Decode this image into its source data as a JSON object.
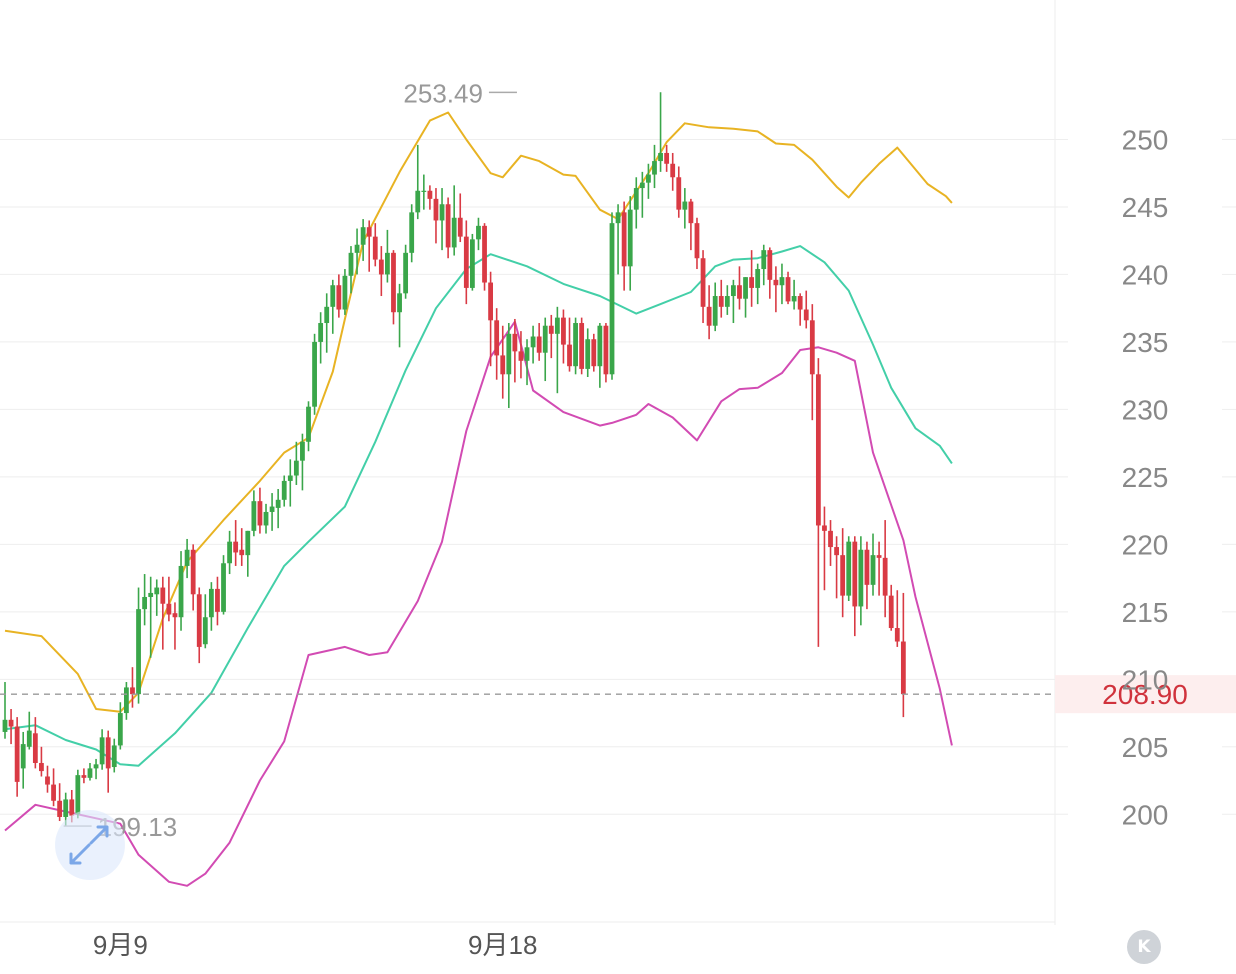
{
  "chart_data": {
    "type": "candlestick",
    "y_axis": {
      "ticks": [
        200,
        205,
        210,
        215,
        220,
        225,
        230,
        235,
        240,
        245,
        250
      ],
      "ylim": [
        193.5,
        257
      ]
    },
    "x_axis": {
      "tick_labels": [
        {
          "label": "9月9",
          "index": 19
        },
        {
          "label": "9月18",
          "index": 82
        }
      ]
    },
    "current_price": {
      "label": "208.90",
      "value": 208.9,
      "color": "#d0323c"
    },
    "annotations": [
      {
        "label": "253.49",
        "value": 253.49,
        "index": 85,
        "kind": "high"
      },
      {
        "label": "199.13",
        "value": 199.13,
        "index": 9,
        "kind": "low"
      }
    ],
    "colors": {
      "up": "#3aa64a",
      "down": "#d93a44",
      "upper_band": "#e8b323",
      "middle_band": "#43cfa8",
      "lower_band": "#d24bb3",
      "grid": "#eeeeee",
      "axis_text": "#888888"
    },
    "candles_ohlc": [
      [
        206.1,
        209.8,
        205.6,
        207.0
      ],
      [
        207.0,
        207.8,
        205.2,
        206.5
      ],
      [
        206.5,
        207.2,
        201.3,
        202.4
      ],
      [
        203.4,
        206.1,
        201.9,
        205.2
      ],
      [
        205.0,
        207.6,
        204.8,
        206.2
      ],
      [
        206.0,
        207.2,
        203.4,
        203.8
      ],
      [
        203.8,
        205.0,
        202.8,
        203.2
      ],
      [
        202.8,
        203.6,
        201.6,
        202.2
      ],
      [
        202.2,
        203.4,
        200.6,
        201.0
      ],
      [
        201.0,
        202.3,
        199.5,
        199.8
      ],
      [
        199.8,
        201.6,
        199.1,
        201.1
      ],
      [
        201.1,
        201.8,
        199.4,
        199.9
      ],
      [
        200.0,
        203.3,
        199.7,
        202.9
      ],
      [
        202.9,
        203.4,
        202.3,
        202.7
      ],
      [
        202.7,
        203.8,
        202.5,
        203.4
      ],
      [
        203.4,
        204.1,
        202.6,
        203.7
      ],
      [
        203.7,
        206.3,
        203.3,
        205.7
      ],
      [
        205.7,
        206.2,
        201.6,
        203.4
      ],
      [
        203.5,
        205.6,
        203.1,
        205.1
      ],
      [
        205.1,
        208.3,
        204.8,
        207.5
      ],
      [
        207.5,
        209.8,
        207.0,
        209.4
      ],
      [
        209.4,
        210.9,
        207.9,
        208.9
      ],
      [
        208.9,
        216.8,
        208.2,
        215.2
      ],
      [
        215.2,
        217.8,
        214.0,
        216.1
      ],
      [
        216.1,
        217.6,
        211.6,
        216.4
      ],
      [
        216.3,
        217.4,
        214.7,
        216.8
      ],
      [
        216.8,
        217.6,
        212.2,
        215.6
      ],
      [
        215.6,
        217.6,
        214.3,
        214.8
      ],
      [
        214.9,
        215.7,
        212.2,
        214.6
      ],
      [
        214.6,
        219.5,
        213.6,
        218.4
      ],
      [
        218.4,
        220.4,
        217.5,
        219.6
      ],
      [
        219.6,
        220.0,
        215.1,
        216.3
      ],
      [
        216.3,
        216.8,
        211.2,
        212.4
      ],
      [
        212.6,
        216.3,
        212.3,
        214.6
      ],
      [
        214.6,
        217.2,
        213.6,
        216.7
      ],
      [
        216.7,
        217.6,
        214.0,
        215.0
      ],
      [
        215.0,
        219.2,
        214.8,
        218.6
      ],
      [
        218.6,
        221.0,
        217.8,
        220.2
      ],
      [
        220.2,
        221.8,
        218.4,
        219.4
      ],
      [
        219.6,
        221.2,
        218.4,
        219.2
      ],
      [
        219.2,
        221.0,
        217.6,
        221.0
      ],
      [
        221.0,
        224.0,
        220.6,
        223.2
      ],
      [
        223.2,
        224.2,
        220.8,
        221.4
      ],
      [
        221.4,
        223.0,
        220.8,
        222.4
      ],
      [
        222.4,
        223.8,
        221.0,
        222.8
      ],
      [
        222.7,
        224.1,
        221.2,
        223.3
      ],
      [
        223.3,
        225.1,
        222.8,
        224.7
      ],
      [
        224.7,
        226.3,
        222.8,
        225.1
      ],
      [
        225.1,
        227.6,
        224.4,
        226.2
      ],
      [
        226.2,
        228.2,
        224.0,
        227.6
      ],
      [
        227.6,
        230.6,
        226.9,
        230.2
      ],
      [
        230.2,
        235.6,
        229.6,
        235.0
      ],
      [
        235.0,
        237.2,
        233.4,
        236.4
      ],
      [
        236.4,
        238.6,
        234.2,
        237.6
      ],
      [
        237.6,
        239.6,
        235.6,
        239.2
      ],
      [
        239.2,
        240.0,
        236.8,
        237.4
      ],
      [
        237.4,
        240.4,
        237.0,
        239.9
      ],
      [
        239.9,
        242.1,
        238.6,
        241.6
      ],
      [
        241.6,
        243.4,
        240.0,
        242.2
      ],
      [
        242.2,
        244.1,
        241.0,
        243.5
      ],
      [
        243.5,
        244.0,
        240.2,
        242.8
      ],
      [
        242.8,
        243.8,
        240.6,
        241.1
      ],
      [
        241.1,
        242.1,
        238.4,
        240.0
      ],
      [
        240.0,
        243.3,
        239.4,
        241.6
      ],
      [
        241.6,
        241.8,
        236.3,
        237.2
      ],
      [
        237.2,
        239.3,
        234.6,
        238.6
      ],
      [
        238.6,
        242.2,
        238.2,
        241.6
      ],
      [
        241.6,
        245.2,
        240.9,
        244.6
      ],
      [
        244.6,
        249.6,
        244.1,
        246.2
      ],
      [
        246.2,
        247.4,
        244.8,
        246.2
      ],
      [
        246.2,
        246.6,
        244.8,
        245.6
      ],
      [
        245.6,
        246.4,
        242.3,
        244.0
      ],
      [
        244.0,
        246.4,
        241.8,
        245.2
      ],
      [
        245.2,
        245.7,
        241.2,
        242.0
      ],
      [
        242.0,
        246.6,
        241.4,
        244.2
      ],
      [
        244.2,
        246.0,
        242.4,
        242.8
      ],
      [
        242.8,
        244.0,
        237.8,
        239.0
      ],
      [
        239.0,
        243.0,
        238.8,
        242.6
      ],
      [
        242.6,
        244.2,
        241.8,
        243.6
      ],
      [
        243.6,
        243.8,
        238.8,
        239.4
      ],
      [
        239.4,
        240.2,
        233.2,
        236.6
      ],
      [
        236.6,
        237.5,
        232.2,
        234.0
      ],
      [
        234.0,
        236.2,
        230.8,
        232.6
      ],
      [
        232.6,
        236.4,
        230.1,
        235.6
      ],
      [
        235.6,
        236.7,
        232.0,
        234.3
      ],
      [
        234.3,
        235.8,
        232.3,
        233.6
      ],
      [
        233.6,
        235.2,
        231.8,
        234.6
      ],
      [
        234.6,
        236.2,
        233.4,
        235.4
      ],
      [
        235.4,
        236.4,
        233.6,
        234.2
      ],
      [
        234.2,
        236.8,
        232.1,
        236.2
      ],
      [
        236.2,
        237.0,
        233.8,
        235.6
      ],
      [
        235.6,
        237.6,
        231.2,
        236.8
      ],
      [
        236.8,
        237.4,
        233.4,
        234.8
      ],
      [
        234.8,
        236.8,
        232.8,
        233.2
      ],
      [
        233.2,
        236.8,
        232.6,
        236.4
      ],
      [
        236.4,
        236.8,
        232.6,
        233.0
      ],
      [
        233.0,
        236.0,
        232.4,
        235.2
      ],
      [
        235.2,
        235.6,
        232.8,
        233.2
      ],
      [
        233.2,
        236.4,
        231.6,
        236.2
      ],
      [
        236.2,
        236.4,
        232.0,
        232.6
      ],
      [
        232.6,
        244.6,
        232.2,
        243.8
      ],
      [
        243.8,
        245.2,
        240.0,
        244.6
      ],
      [
        244.6,
        245.4,
        238.8,
        240.6
      ],
      [
        240.6,
        245.8,
        238.8,
        244.8
      ],
      [
        244.8,
        247.2,
        243.4,
        246.4
      ],
      [
        246.4,
        247.6,
        244.2,
        246.8
      ],
      [
        246.8,
        248.2,
        245.6,
        247.4
      ],
      [
        247.4,
        249.6,
        246.4,
        248.4
      ],
      [
        248.4,
        253.5,
        247.6,
        249.0
      ],
      [
        249.0,
        249.6,
        247.6,
        248.2
      ],
      [
        248.2,
        249.0,
        246.2,
        247.2
      ],
      [
        247.2,
        248.0,
        244.2,
        244.8
      ],
      [
        244.8,
        246.4,
        243.4,
        245.4
      ],
      [
        245.4,
        245.6,
        241.8,
        243.8
      ],
      [
        243.8,
        244.2,
        240.4,
        241.2
      ],
      [
        241.2,
        241.8,
        236.4,
        237.6
      ],
      [
        237.6,
        239.2,
        235.2,
        236.2
      ],
      [
        236.2,
        239.4,
        235.8,
        238.4
      ],
      [
        238.4,
        239.6,
        236.8,
        237.6
      ],
      [
        237.6,
        239.2,
        237.0,
        238.4
      ],
      [
        238.4,
        239.6,
        236.4,
        239.2
      ],
      [
        239.2,
        240.6,
        237.4,
        238.2
      ],
      [
        238.2,
        239.8,
        236.8,
        239.8
      ],
      [
        239.8,
        241.8,
        237.6,
        239.0
      ],
      [
        239.0,
        240.8,
        237.8,
        240.4
      ],
      [
        240.4,
        242.2,
        239.2,
        241.8
      ],
      [
        241.8,
        242.0,
        238.2,
        239.6
      ],
      [
        239.6,
        240.6,
        237.2,
        239.2
      ],
      [
        239.2,
        240.8,
        237.8,
        239.8
      ],
      [
        239.8,
        240.2,
        237.8,
        238.0
      ],
      [
        238.0,
        239.6,
        237.4,
        238.4
      ],
      [
        238.4,
        238.6,
        236.2,
        237.4
      ],
      [
        237.4,
        238.8,
        236.0,
        236.6
      ],
      [
        236.6,
        237.8,
        229.2,
        232.6
      ],
      [
        232.6,
        233.8,
        212.4,
        221.4
      ],
      [
        221.4,
        222.8,
        216.6,
        221.0
      ],
      [
        221.0,
        221.8,
        218.4,
        219.8
      ],
      [
        219.8,
        220.6,
        216.0,
        219.2
      ],
      [
        219.2,
        221.2,
        214.6,
        216.2
      ],
      [
        216.2,
        220.6,
        215.8,
        220.2
      ],
      [
        220.2,
        220.6,
        213.2,
        215.4
      ],
      [
        215.4,
        220.6,
        214.0,
        219.6
      ],
      [
        219.6,
        220.2,
        215.2,
        217.0
      ],
      [
        217.0,
        220.8,
        216.2,
        219.2
      ],
      [
        219.2,
        220.2,
        216.2,
        219.0
      ],
      [
        219.0,
        221.8,
        214.6,
        216.2
      ],
      [
        216.2,
        217.0,
        213.6,
        213.8
      ],
      [
        213.8,
        216.6,
        212.4,
        212.8
      ],
      [
        212.8,
        216.4,
        207.2,
        208.9
      ]
    ],
    "bands": {
      "upper": [
        [
          0,
          213.6
        ],
        [
          6,
          213.2
        ],
        [
          12,
          210.4
        ],
        [
          15,
          207.8
        ],
        [
          19,
          207.6
        ],
        [
          22,
          209.0
        ],
        [
          26,
          214.5
        ],
        [
          30,
          218.7
        ],
        [
          36,
          221.8
        ],
        [
          42,
          224.7
        ],
        [
          46,
          226.8
        ],
        [
          50,
          227.9
        ],
        [
          54,
          232.8
        ],
        [
          56,
          236.7
        ],
        [
          59,
          242.4
        ],
        [
          65,
          247.6
        ],
        [
          70,
          251.4
        ],
        [
          73,
          252.0
        ],
        [
          76,
          250.0
        ],
        [
          80,
          247.5
        ],
        [
          82,
          247.2
        ],
        [
          85,
          248.8
        ],
        [
          88,
          248.4
        ],
        [
          92,
          247.4
        ],
        [
          94,
          247.3
        ],
        [
          98,
          244.8
        ],
        [
          101,
          244.1
        ],
        [
          106,
          247.5
        ],
        [
          109,
          249.8
        ],
        [
          112,
          251.2
        ],
        [
          116,
          250.9
        ],
        [
          120,
          250.8
        ],
        [
          124,
          250.6
        ],
        [
          127,
          249.7
        ],
        [
          130,
          249.6
        ],
        [
          133,
          248.5
        ],
        [
          137,
          246.5
        ],
        [
          139,
          245.7
        ],
        [
          141,
          246.8
        ],
        [
          144,
          248.2
        ],
        [
          147,
          249.4
        ],
        [
          152,
          246.7
        ],
        [
          155,
          245.8
        ],
        [
          156,
          245.3
        ]
      ],
      "middle": [
        [
          0,
          206.3
        ],
        [
          5,
          206.6
        ],
        [
          10,
          205.5
        ],
        [
          15,
          204.8
        ],
        [
          19,
          203.7
        ],
        [
          22,
          203.6
        ],
        [
          28,
          206.0
        ],
        [
          34,
          209.0
        ],
        [
          40,
          213.8
        ],
        [
          46,
          218.4
        ],
        [
          50,
          220.2
        ],
        [
          56,
          222.8
        ],
        [
          61,
          227.6
        ],
        [
          66,
          232.9
        ],
        [
          71,
          237.5
        ],
        [
          76,
          240.4
        ],
        [
          80,
          241.5
        ],
        [
          86,
          240.6
        ],
        [
          92,
          239.3
        ],
        [
          98,
          238.4
        ],
        [
          104,
          237.1
        ],
        [
          108,
          237.8
        ],
        [
          113,
          238.7
        ],
        [
          117,
          240.6
        ],
        [
          120,
          241.1
        ],
        [
          124,
          241.2
        ],
        [
          128,
          241.7
        ],
        [
          131,
          242.1
        ],
        [
          135,
          240.9
        ],
        [
          139,
          238.8
        ],
        [
          143,
          234.8
        ],
        [
          146,
          231.6
        ],
        [
          150,
          228.6
        ],
        [
          154,
          227.3
        ],
        [
          156,
          226.0
        ]
      ],
      "lower": [
        [
          0,
          198.8
        ],
        [
          5,
          200.7
        ],
        [
          10,
          200.2
        ],
        [
          15,
          199.7
        ],
        [
          19,
          199.3
        ],
        [
          22,
          197.0
        ],
        [
          27,
          195.0
        ],
        [
          30,
          194.7
        ],
        [
          33,
          195.6
        ],
        [
          37,
          197.9
        ],
        [
          42,
          202.5
        ],
        [
          46,
          205.4
        ],
        [
          50,
          211.8
        ],
        [
          56,
          212.4
        ],
        [
          60,
          211.8
        ],
        [
          63,
          212.0
        ],
        [
          68,
          215.8
        ],
        [
          72,
          220.2
        ],
        [
          76,
          228.4
        ],
        [
          80,
          233.9
        ],
        [
          84,
          236.5
        ],
        [
          87,
          231.4
        ],
        [
          92,
          229.8
        ],
        [
          98,
          228.8
        ],
        [
          100,
          229.0
        ],
        [
          104,
          229.6
        ],
        [
          106,
          230.4
        ],
        [
          110,
          229.4
        ],
        [
          114,
          227.7
        ],
        [
          118,
          230.6
        ],
        [
          121,
          231.5
        ],
        [
          124,
          231.6
        ],
        [
          128,
          232.7
        ],
        [
          131,
          234.4
        ],
        [
          134,
          234.6
        ],
        [
          137,
          234.2
        ],
        [
          140,
          233.6
        ],
        [
          143,
          226.8
        ],
        [
          148,
          220.3
        ],
        [
          150,
          216.1
        ],
        [
          154,
          209.3
        ],
        [
          156,
          205.1
        ]
      ]
    }
  }
}
